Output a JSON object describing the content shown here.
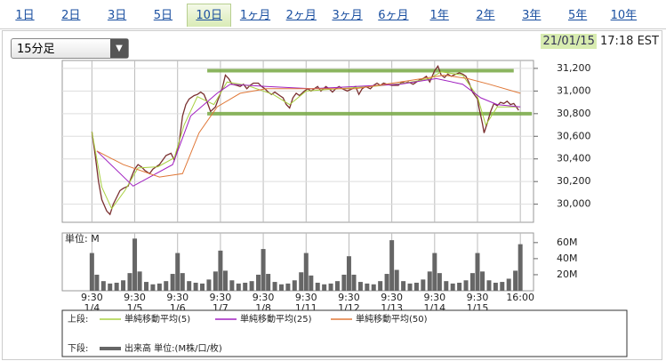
{
  "tabs": [
    "1日",
    "2日",
    "3日",
    "5日",
    "10日",
    "1ヶ月",
    "2ヶ月",
    "3ヶ月",
    "6ヶ月",
    "1年",
    "2年",
    "3年",
    "5年",
    "10年"
  ],
  "selected_tab": 4,
  "dropdown": "15分足",
  "timestamp": {
    "date": "21/01/15",
    "time": "17:18 EST"
  },
  "legend": {
    "upper_label": "上段:",
    "lower_label": "下段:"
  },
  "chart_data": [
    {
      "type": "line",
      "xlim": [
        -18,
        268
      ],
      "ylim": [
        29840,
        31270
      ],
      "yticks": [
        {
          "value": 30000,
          "label": "30,000"
        },
        {
          "value": 30200,
          "label": "30,200"
        },
        {
          "value": 30400,
          "label": "30,400"
        },
        {
          "value": 30600,
          "label": "30,600"
        },
        {
          "value": 30800,
          "label": "30,800"
        },
        {
          "value": 31000,
          "label": "31,000"
        },
        {
          "value": 31200,
          "label": "31,200"
        }
      ],
      "grid": true,
      "series": [
        {
          "color": "#7a3030",
          "x": [
            0,
            2,
            4,
            6,
            9,
            11,
            13,
            15,
            17,
            19,
            22,
            24,
            26,
            28,
            30,
            32,
            35,
            37,
            39,
            41,
            43,
            45,
            48,
            50,
            53,
            55,
            57,
            59,
            62,
            64,
            66,
            68,
            70,
            72,
            75,
            77,
            79,
            81,
            83,
            85,
            88,
            90,
            92,
            94,
            96,
            98,
            101,
            103,
            105,
            107,
            109,
            111,
            114,
            116,
            118,
            120,
            122,
            124,
            126,
            129,
            131,
            133,
            135,
            137,
            139,
            142,
            144,
            146,
            148,
            150,
            152,
            155,
            158,
            160,
            162,
            164,
            166,
            169,
            171,
            173,
            175,
            177,
            179,
            182,
            184,
            186,
            188,
            190,
            192,
            195,
            197,
            199,
            201,
            203,
            205,
            208,
            210,
            212,
            214,
            216,
            218,
            221,
            223,
            225,
            227,
            229,
            231,
            234,
            235,
            237,
            238,
            240,
            242,
            244,
            246,
            248,
            250,
            252,
            254,
            256,
            258,
            259
          ],
          "values": [
            30640,
            30430,
            30200,
            30040,
            29940,
            29910,
            30000,
            30060,
            30120,
            30140,
            30160,
            30240,
            30310,
            30350,
            30330,
            30300,
            30270,
            30310,
            30330,
            30350,
            30390,
            30430,
            30450,
            30390,
            30550,
            30780,
            30880,
            30930,
            30960,
            30970,
            30990,
            30970,
            30900,
            30820,
            30860,
            30940,
            31020,
            31140,
            31110,
            31060,
            31050,
            31040,
            31060,
            31020,
            31050,
            31070,
            31070,
            31040,
            31020,
            30990,
            30970,
            30990,
            30960,
            30940,
            30880,
            30850,
            30940,
            30980,
            30960,
            31000,
            31020,
            31000,
            31020,
            31040,
            31000,
            31040,
            31020,
            30990,
            31020,
            31040,
            31020,
            31000,
            31020,
            31040,
            30970,
            31020,
            31040,
            31020,
            31050,
            31070,
            31050,
            31070,
            31060,
            31050,
            31050,
            31050,
            31080,
            31070,
            31080,
            31060,
            31080,
            31100,
            31110,
            31130,
            31080,
            31180,
            31220,
            31140,
            31120,
            31150,
            31130,
            31150,
            31160,
            31150,
            31130,
            31070,
            30990,
            30930,
            30850,
            30710,
            30630,
            30720,
            30820,
            30890,
            30870,
            30900,
            30890,
            30910,
            30880,
            30890,
            30850,
            30830
          ]
        },
        {
          "name": "単純移動平均(5)",
          "color": "#a8d040",
          "x": [
            0,
            6,
            12,
            20,
            28,
            40,
            50,
            56,
            64,
            74,
            82,
            94,
            110,
            120,
            130,
            150,
            170,
            190,
            205,
            212,
            225,
            234,
            239,
            246,
            259
          ],
          "values": [
            30640,
            30150,
            29960,
            30120,
            30320,
            30330,
            30410,
            30700,
            30950,
            30880,
            31080,
            31050,
            30970,
            30880,
            31000,
            31020,
            31040,
            31070,
            31110,
            31170,
            31140,
            30950,
            30700,
            30860,
            30860
          ]
        },
        {
          "name": "単純移動平均(25)",
          "color": "#a020c0",
          "x": [
            3,
            25,
            49,
            60,
            76,
            84,
            106,
            133,
            160,
            187,
            209,
            225,
            236,
            246,
            260
          ],
          "values": [
            30470,
            30160,
            30350,
            30780,
            30980,
            31060,
            31040,
            31020,
            31040,
            31060,
            31110,
            31060,
            30940,
            30880,
            30860
          ]
        },
        {
          "name": "単純移動平均(50)",
          "color": "#e07838",
          "x": [
            3,
            19,
            41,
            55,
            65,
            76,
            90,
            106,
            160,
            187,
            214,
            228,
            241,
            260
          ],
          "values": [
            30470,
            30350,
            30240,
            30270,
            30630,
            30860,
            30980,
            31020,
            31020,
            31080,
            31140,
            31110,
            31060,
            30980
          ]
        }
      ],
      "trend_lines": [
        {
          "value": 31180,
          "x": [
            70,
            256
          ],
          "color": "#77a843"
        },
        {
          "value": 30800,
          "x": [
            70,
            267
          ],
          "color": "#77a843"
        }
      ]
    },
    {
      "type": "bar",
      "unit_label": "単位: M",
      "xlim": [
        -18,
        268
      ],
      "ylim": [
        0,
        72
      ],
      "yticks": [
        {
          "value": 20,
          "label": "20M"
        },
        {
          "value": 40,
          "label": "40M"
        },
        {
          "value": 60,
          "label": "60M"
        }
      ],
      "xticks": [
        {
          "value": 0,
          "label": "9:30"
        },
        {
          "value": 26,
          "label": "9:30"
        },
        {
          "value": 52,
          "label": "9:30"
        },
        {
          "value": 78,
          "label": "9:30"
        },
        {
          "value": 104,
          "label": "9:30"
        },
        {
          "value": 130,
          "label": "9:30"
        },
        {
          "value": 156,
          "label": "9:30"
        },
        {
          "value": 182,
          "label": "9:30"
        },
        {
          "value": 208,
          "label": "9:30"
        },
        {
          "value": 234,
          "label": "9:30"
        },
        {
          "value": 260,
          "label": "16:00"
        }
      ],
      "x_date_labels": [
        "1/4",
        "1/5",
        "1/6",
        "1/7",
        "1/8",
        "1/11",
        "1/12",
        "1/13",
        "1/14",
        "1/15",
        null
      ],
      "series": [
        {
          "name": "出来高 単位:(M株/口/枚)",
          "color": "#666666",
          "x": [
            0,
            3,
            7,
            11,
            15,
            19,
            23,
            26,
            29,
            33,
            37,
            41,
            45,
            49,
            52,
            55,
            59,
            63,
            67,
            71,
            75,
            78,
            81,
            85,
            89,
            93,
            97,
            101,
            104,
            107,
            111,
            115,
            119,
            123,
            127,
            130,
            133,
            137,
            141,
            145,
            149,
            153,
            156,
            159,
            163,
            167,
            171,
            175,
            179,
            182,
            185,
            189,
            193,
            197,
            201,
            205,
            208,
            211,
            215,
            219,
            223,
            227,
            231,
            234,
            237,
            241,
            245,
            249,
            253,
            257,
            260
          ],
          "values": [
            47,
            20,
            12,
            9,
            10,
            13,
            22,
            65,
            24,
            11,
            8,
            9,
            12,
            21,
            47,
            22,
            12,
            10,
            9,
            14,
            24,
            50,
            25,
            13,
            9,
            10,
            12,
            20,
            52,
            21,
            11,
            8,
            9,
            13,
            23,
            47,
            19,
            10,
            8,
            9,
            12,
            20,
            43,
            20,
            11,
            9,
            8,
            12,
            21,
            63,
            26,
            12,
            9,
            10,
            14,
            24,
            47,
            22,
            12,
            9,
            10,
            13,
            22,
            47,
            24,
            13,
            10,
            11,
            15,
            25,
            58
          ]
        }
      ]
    }
  ]
}
